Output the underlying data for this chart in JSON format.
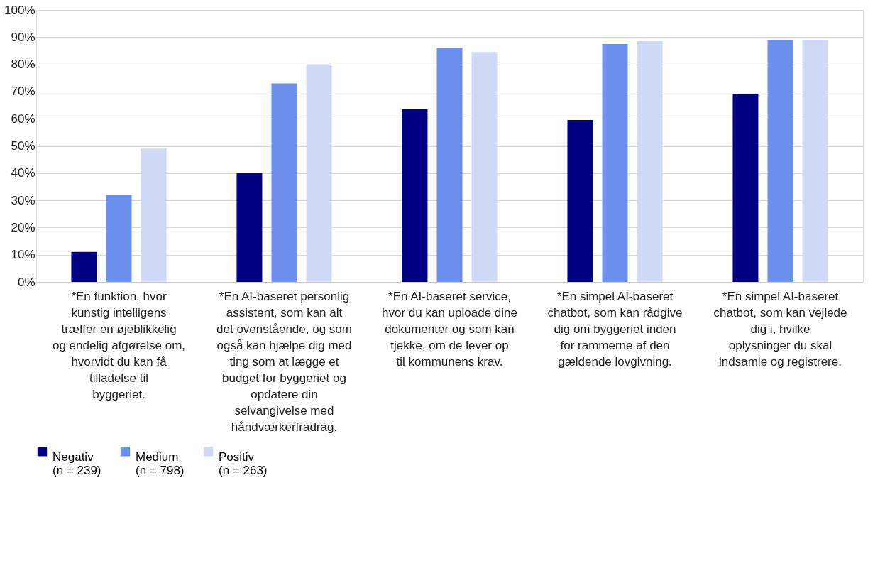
{
  "chart_data": {
    "type": "bar",
    "categories": [
      "*En funktion, hvor kunstig intelligens træffer en øjeblikkelig og endelig afgørelse om, hvorvidt du kan få tilladelse til byggeriet.",
      "*En AI-baseret personlig assistent, som kan alt det ovenstående, og som også kan hjælpe dig med ting som at lægge et budget for byggeriet og opdatere din selvangivelse med håndværkerfradrag.",
      "*En AI-baseret service, hvor du kan uploade dine dokumenter og som kan tjekke, om de lever op til kommunens krav.",
      "*En simpel AI-baseret chatbot, som kan rådgive dig om byggeriet inden for rammerne af den gældende lovgivning.",
      "*En simpel AI-baseret chatbot, som kan vejlede dig i, hvilke oplysninger du skal indsamle og registrere."
    ],
    "series": [
      {
        "name": "Negativ\n(n = 239)",
        "color": "#000080",
        "values": [
          11,
          40,
          63.5,
          59.5,
          69
        ]
      },
      {
        "name": "Medium\n(n = 798)",
        "color": "#6b8fec",
        "values": [
          32,
          73,
          86,
          87.5,
          89
        ]
      },
      {
        "name": "Positiv\n(n = 263)",
        "color": "#d0daf7",
        "values": [
          49,
          80,
          84.5,
          88.5,
          89
        ]
      }
    ],
    "ylim": [
      0,
      100
    ],
    "yticks": [
      {
        "value": 0,
        "label": "0%"
      },
      {
        "value": 10,
        "label": "10%"
      },
      {
        "value": 20,
        "label": "20%"
      },
      {
        "value": 30,
        "label": "30%"
      },
      {
        "value": 40,
        "label": "40%"
      },
      {
        "value": 50,
        "label": "50%"
      },
      {
        "value": 60,
        "label": "60%"
      },
      {
        "value": 70,
        "label": "70%"
      },
      {
        "value": 80,
        "label": "80%"
      },
      {
        "value": 90,
        "label": "90%"
      },
      {
        "value": 100,
        "label": "100%"
      }
    ],
    "grid": "y",
    "legend": "bottom"
  }
}
